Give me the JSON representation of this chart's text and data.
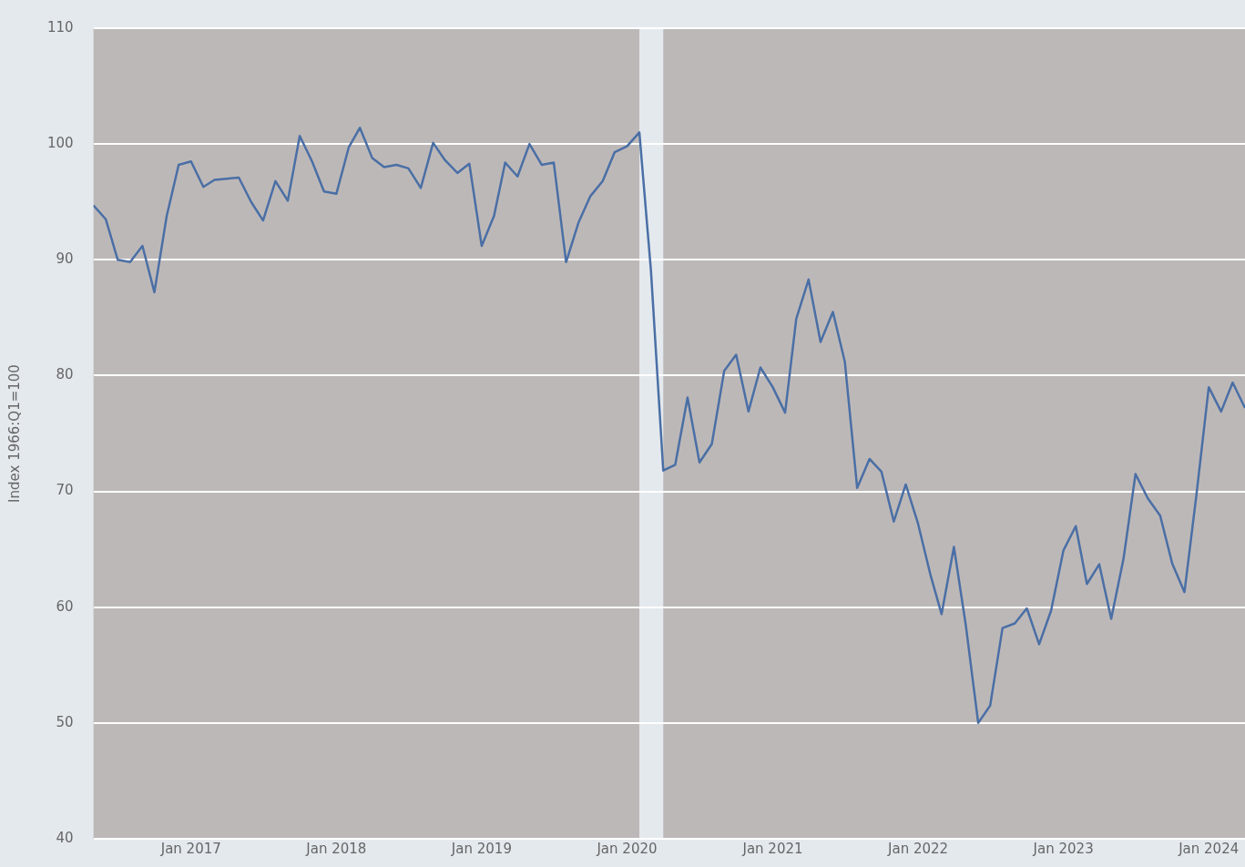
{
  "chart_data": {
    "type": "line",
    "ylabel": "Index 1966:Q1=100",
    "x": [
      "2016-05",
      "2016-06",
      "2016-07",
      "2016-08",
      "2016-09",
      "2016-10",
      "2016-11",
      "2016-12",
      "2017-01",
      "2017-02",
      "2017-03",
      "2017-04",
      "2017-05",
      "2017-06",
      "2017-07",
      "2017-08",
      "2017-09",
      "2017-10",
      "2017-11",
      "2017-12",
      "2018-01",
      "2018-02",
      "2018-03",
      "2018-04",
      "2018-05",
      "2018-06",
      "2018-07",
      "2018-08",
      "2018-09",
      "2018-10",
      "2018-11",
      "2018-12",
      "2019-01",
      "2019-02",
      "2019-03",
      "2019-04",
      "2019-05",
      "2019-06",
      "2019-07",
      "2019-08",
      "2019-09",
      "2019-10",
      "2019-11",
      "2019-12",
      "2020-01",
      "2020-02",
      "2020-03",
      "2020-04",
      "2020-05",
      "2020-06",
      "2020-07",
      "2020-08",
      "2020-09",
      "2020-10",
      "2020-11",
      "2020-12",
      "2021-01",
      "2021-02",
      "2021-03",
      "2021-04",
      "2021-05",
      "2021-06",
      "2021-07",
      "2021-08",
      "2021-09",
      "2021-10",
      "2021-11",
      "2021-12",
      "2022-01",
      "2022-02",
      "2022-03",
      "2022-04",
      "2022-05",
      "2022-06",
      "2022-07",
      "2022-08",
      "2022-09",
      "2022-10",
      "2022-11",
      "2022-12",
      "2023-01",
      "2023-02",
      "2023-03",
      "2023-04",
      "2023-05",
      "2023-06",
      "2023-07",
      "2023-08",
      "2023-09",
      "2023-10",
      "2023-11",
      "2023-12",
      "2024-01",
      "2024-02",
      "2024-03",
      "2024-04"
    ],
    "series": [
      {
        "color": "#4a6fa5",
        "values": [
          94.7,
          93.5,
          90.0,
          89.8,
          91.2,
          87.2,
          93.8,
          98.2,
          98.5,
          96.3,
          96.9,
          97.0,
          97.1,
          95.0,
          93.4,
          96.8,
          95.1,
          100.7,
          98.5,
          95.9,
          95.7,
          99.7,
          101.4,
          98.8,
          98.0,
          98.2,
          97.9,
          96.2,
          100.1,
          98.6,
          97.5,
          98.3,
          91.2,
          93.8,
          98.4,
          97.2,
          100.0,
          98.2,
          98.4,
          89.8,
          93.2,
          95.5,
          96.8,
          99.3,
          99.8,
          101.0,
          89.1,
          71.8,
          72.3,
          78.1,
          72.5,
          74.1,
          80.4,
          81.8,
          76.9,
          80.7,
          79.0,
          76.8,
          84.9,
          88.3,
          82.9,
          85.5,
          81.2,
          70.3,
          72.8,
          71.7,
          67.4,
          70.6,
          67.2,
          62.8,
          59.4,
          65.2,
          58.4,
          50.0,
          51.5,
          58.2,
          58.6,
          59.9,
          56.8,
          59.7,
          64.9,
          67.0,
          62.0,
          63.7,
          59.0,
          64.2,
          71.5,
          69.4,
          67.9,
          63.8,
          61.3,
          69.7,
          79.0,
          76.9,
          79.4,
          77.2
        ]
      }
    ],
    "xlim": [
      "2016-05",
      "2024-04"
    ],
    "xticks": [
      {
        "value": "2017-01",
        "label": "Jan 2017"
      },
      {
        "value": "2018-01",
        "label": "Jan 2018"
      },
      {
        "value": "2019-01",
        "label": "Jan 2019"
      },
      {
        "value": "2020-01",
        "label": "Jan 2020"
      },
      {
        "value": "2021-01",
        "label": "Jan 2021"
      },
      {
        "value": "2022-01",
        "label": "Jan 2022"
      },
      {
        "value": "2023-01",
        "label": "Jan 2023"
      },
      {
        "value": "2024-01",
        "label": "Jan 2024"
      }
    ],
    "ylim": [
      40,
      110
    ],
    "yticks": [
      40,
      50,
      60,
      70,
      80,
      90,
      100,
      110
    ],
    "bands": [
      {
        "axis": "x",
        "from": "2016-05",
        "to": "2020-02",
        "color": "#bdb8b8"
      },
      {
        "axis": "x",
        "from": "2020-04",
        "to": "2024-04",
        "color": "#bdb8b8"
      }
    ],
    "grid": "y",
    "legend": false,
    "marker": "none",
    "line_style": "solid"
  }
}
